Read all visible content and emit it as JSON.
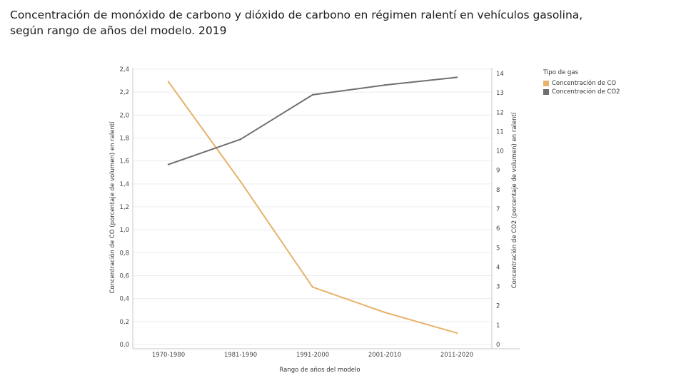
{
  "title_line1": "Concentración de monóxido de carbono y dióxido de carbono en régimen ralentí  en vehículos gasolina,",
  "title_line2": "según rango de años del modelo. 2019",
  "legend": {
    "title": "Tipo de gas",
    "items": [
      {
        "label": "Concentración de CO",
        "color": "#e8b26a"
      },
      {
        "label": "Concentración de CO2",
        "color": "#6f6f6f"
      }
    ]
  },
  "chart_data": {
    "type": "line",
    "categories": [
      "1970-1980",
      "1981-1990",
      "1991-2000",
      "2001-2010",
      "2011-2020"
    ],
    "series": [
      {
        "name": "Concentración de CO",
        "axis": "left",
        "color": "#e8b26a",
        "values": [
          2.29,
          1.42,
          0.5,
          0.28,
          0.1
        ]
      },
      {
        "name": "Concentración de CO2",
        "axis": "right",
        "color": "#6f6f6f",
        "values": [
          9.3,
          10.6,
          12.9,
          13.4,
          13.8
        ]
      }
    ],
    "xlabel": "Rango de años del modelo",
    "ylabel_left": "Concentración de CO (porcentaje de volumen) en ralentí",
    "ylabel_right": "Concentración de CO2 (porcentaje de volumen) en ralentí",
    "ylim_left": [
      0,
      2.4
    ],
    "ylim_right": [
      0,
      14
    ],
    "yticks_left": [
      "0,0",
      "0,2",
      "0,4",
      "0,6",
      "0,8",
      "1,0",
      "1,2",
      "1,4",
      "1,6",
      "1,8",
      "2,0",
      "2,2",
      "2,4"
    ],
    "yticks_right": [
      "0",
      "1",
      "2",
      "3",
      "4",
      "5",
      "6",
      "7",
      "8",
      "9",
      "10",
      "11",
      "12",
      "13",
      "14"
    ],
    "grid": true
  }
}
